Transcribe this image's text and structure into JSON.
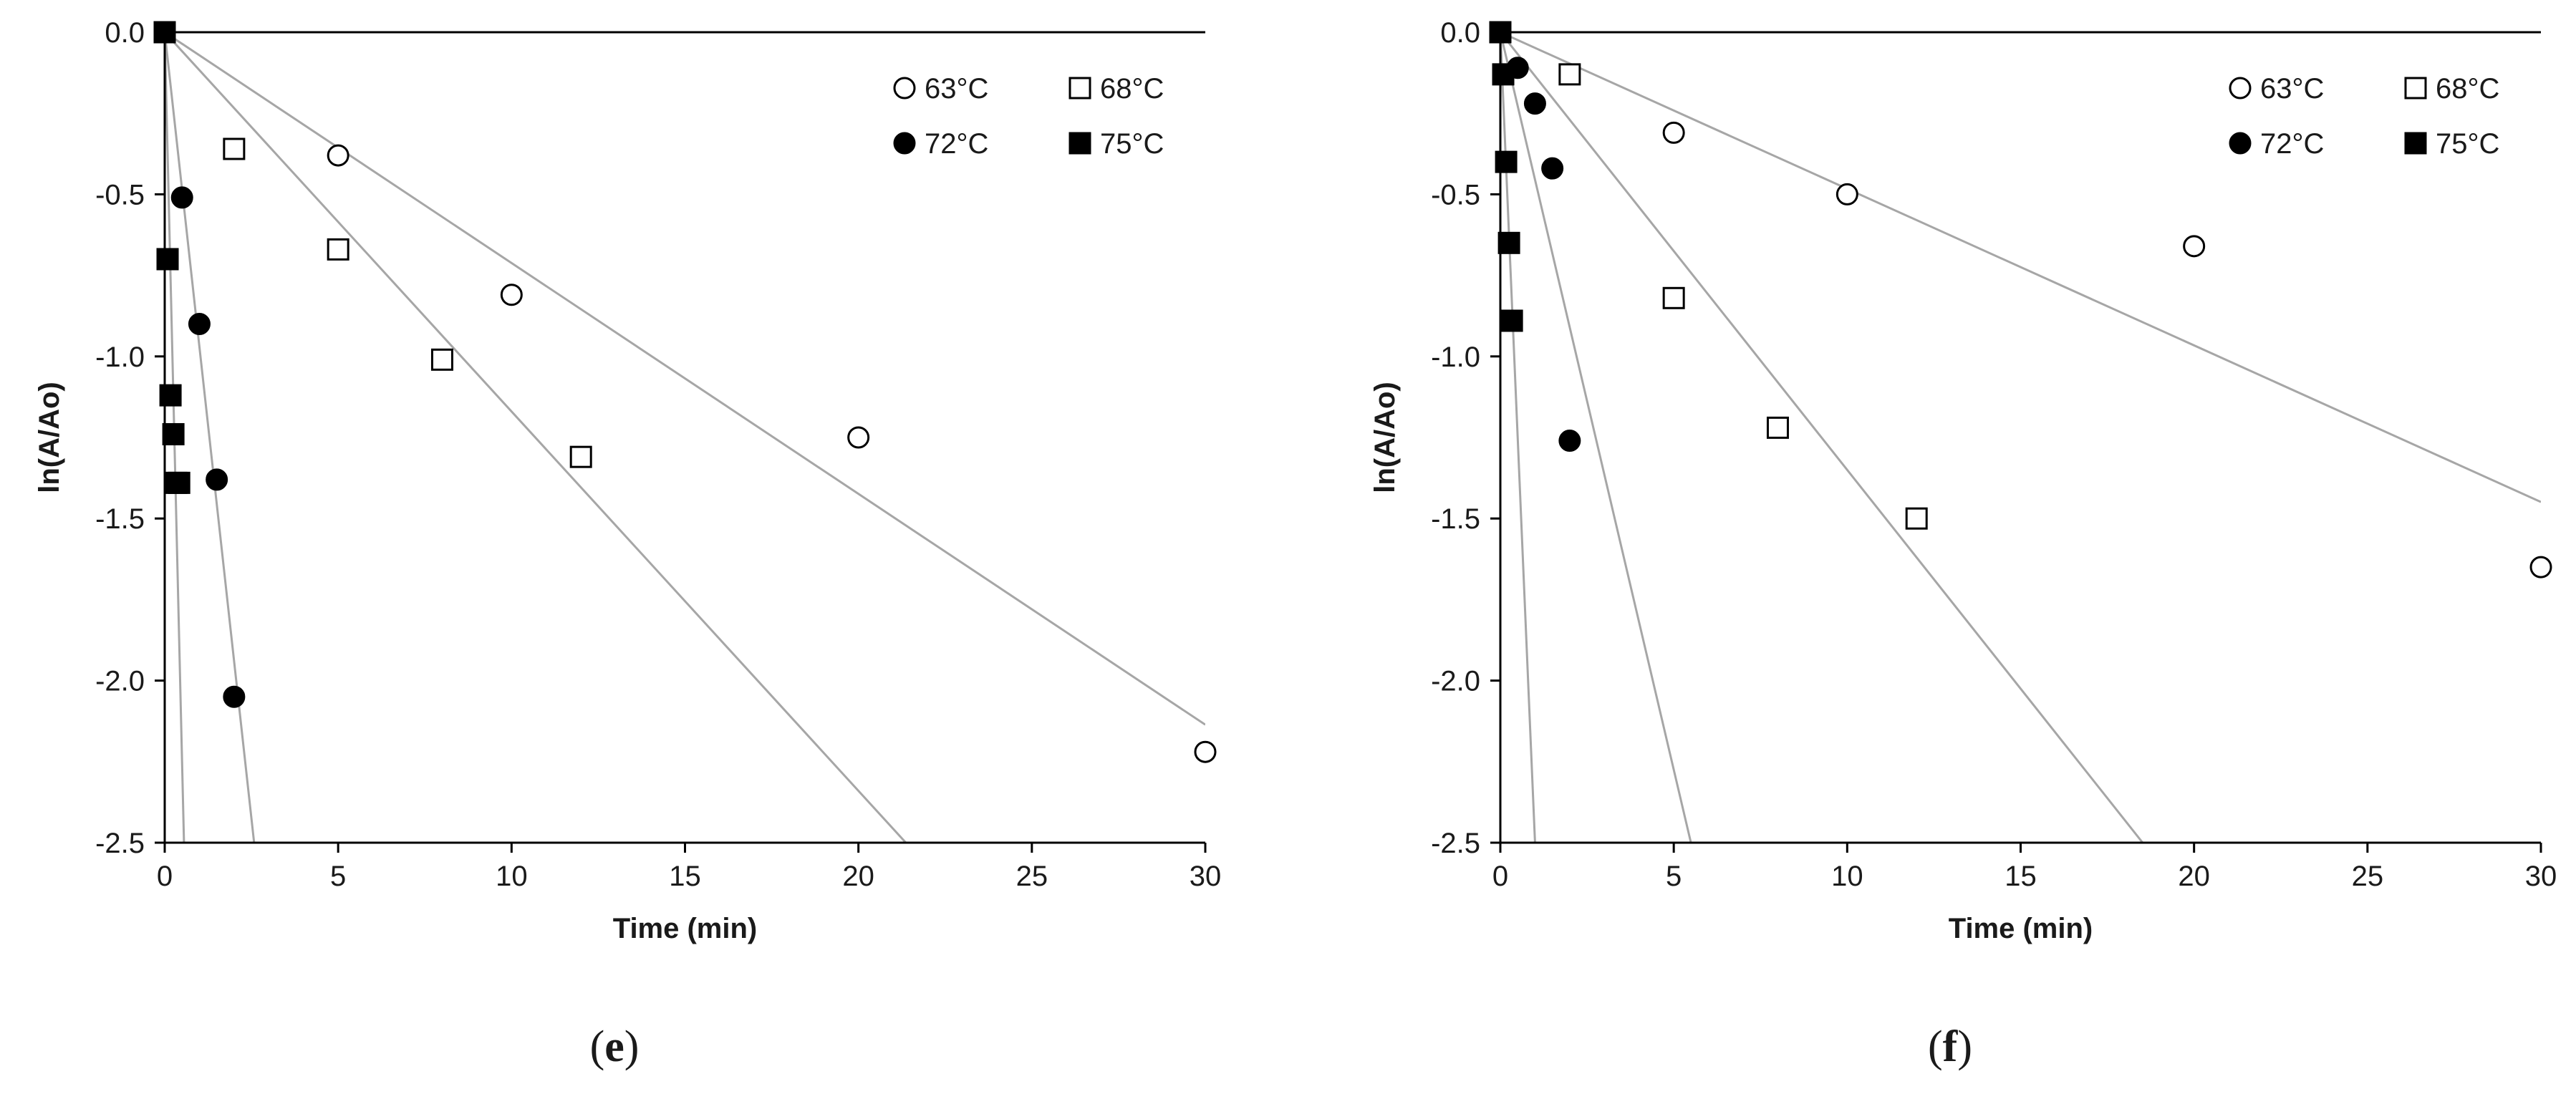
{
  "chart_data": [
    {
      "type": "scatter",
      "panel_label": "(e)",
      "xlabel": "Time (min)",
      "ylabel": "ln(A/Ao)",
      "xlim": [
        0,
        30
      ],
      "ylim": [
        -2.5,
        0
      ],
      "xticks": [
        0,
        5,
        10,
        15,
        20,
        25,
        30
      ],
      "yticks": [
        0.0,
        -0.5,
        -1.0,
        -1.5,
        -2.0,
        -2.5
      ],
      "ytick_labels": [
        "0.0",
        "-0.5",
        "-1.0",
        "-1.5",
        "-2.0",
        "-2.5"
      ],
      "grid": false,
      "legend_position": "top-right",
      "series": [
        {
          "name": "63°C",
          "marker": "open-circle",
          "points": [
            [
              0,
              0
            ],
            [
              5,
              -0.38
            ],
            [
              10,
              -0.81
            ],
            [
              20,
              -1.25
            ],
            [
              30,
              -2.22
            ]
          ],
          "fit_slope": -0.0712
        },
        {
          "name": "68°C",
          "marker": "open-square",
          "points": [
            [
              0,
              0
            ],
            [
              2,
              -0.36
            ],
            [
              5,
              -0.67
            ],
            [
              8,
              -1.01
            ],
            [
              12,
              -1.31
            ]
          ],
          "fit_slope": -0.117
        },
        {
          "name": "72°C",
          "marker": "filled-circle",
          "points": [
            [
              0,
              0
            ],
            [
              0.5,
              -0.51
            ],
            [
              1,
              -0.9
            ],
            [
              1.5,
              -1.38
            ],
            [
              2,
              -2.05
            ]
          ],
          "fit_slope": -0.97
        },
        {
          "name": "75°C",
          "marker": "filled-square",
          "points": [
            [
              0,
              0
            ],
            [
              0.083,
              -0.7
            ],
            [
              0.167,
              -1.12
            ],
            [
              0.25,
              -1.24
            ],
            [
              0.333,
              -1.39
            ],
            [
              0.417,
              -1.39
            ]
          ],
          "fit_slope": -4.5
        }
      ]
    },
    {
      "type": "scatter",
      "panel_label": "(f)",
      "xlabel": "Time (min)",
      "ylabel": "ln(A/Ao)",
      "xlim": [
        0,
        30
      ],
      "ylim": [
        -2.5,
        0
      ],
      "xticks": [
        0,
        5,
        10,
        15,
        20,
        25,
        30
      ],
      "yticks": [
        0.0,
        -0.5,
        -1.0,
        -1.5,
        -2.0,
        -2.5
      ],
      "ytick_labels": [
        "0.0",
        "-0.5",
        "-1.0",
        "-1.5",
        "-2.0",
        "-2.5"
      ],
      "grid": false,
      "legend_position": "top-right",
      "series": [
        {
          "name": "63°C",
          "marker": "open-circle",
          "points": [
            [
              0,
              0
            ],
            [
              5,
              -0.31
            ],
            [
              10,
              -0.5
            ],
            [
              20,
              -0.66
            ],
            [
              30,
              -1.65
            ]
          ],
          "fit_slope": -0.0483
        },
        {
          "name": "68°C",
          "marker": "open-square",
          "points": [
            [
              0,
              0
            ],
            [
              2,
              -0.13
            ],
            [
              5,
              -0.82
            ],
            [
              8,
              -1.22
            ],
            [
              12,
              -1.5
            ]
          ],
          "fit_slope": -0.135
        },
        {
          "name": "72°C",
          "marker": "filled-circle",
          "points": [
            [
              0,
              0
            ],
            [
              0.5,
              -0.11
            ],
            [
              1,
              -0.22
            ],
            [
              1.5,
              -0.42
            ],
            [
              2,
              -1.26
            ]
          ],
          "fit_slope": -0.455
        },
        {
          "name": "75°C",
          "marker": "filled-square",
          "points": [
            [
              0,
              0
            ],
            [
              0.083,
              -0.13
            ],
            [
              0.167,
              -0.4
            ],
            [
              0.25,
              -0.65
            ],
            [
              0.333,
              -0.89
            ]
          ],
          "fit_slope": -2.5
        }
      ]
    }
  ]
}
